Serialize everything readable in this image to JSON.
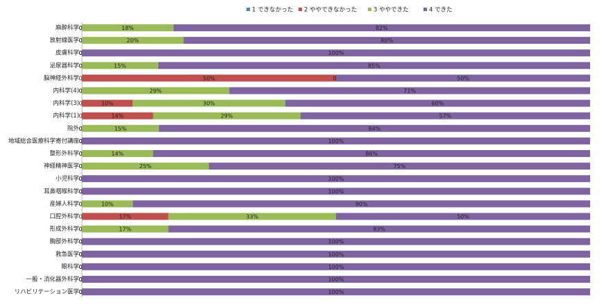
{
  "chart_data": {
    "type": "stacked-bar-100",
    "categories": [
      "麻酔科学",
      "放射線医学",
      "皮膚科学",
      "泌尿器科学",
      "脳神経外科学",
      "内科学(4)",
      "内科学(3)",
      "内科学(1)",
      "院外",
      "地域総合医療科学寄付講座",
      "整形外科学",
      "神経精神医学",
      "小児科学",
      "耳鼻咽喉科学",
      "産婦人科学",
      "口腔外科学",
      "形成外科学",
      "胸部外科学",
      "救急医学",
      "眼科学",
      "一般・消化器外科学",
      "リハビリテーション医学"
    ],
    "series": [
      {
        "name": "1 できなかった",
        "color": "#4f81bd",
        "values": [
          0,
          0,
          0,
          0,
          0,
          0,
          0,
          0,
          0,
          0,
          0,
          0,
          0,
          0,
          0,
          0,
          0,
          0,
          0,
          0,
          0,
          0
        ],
        "value_labels": [
          "0%",
          "0%",
          "0%",
          "0%",
          "0%",
          "0%",
          "0%",
          "0%",
          "0%",
          "0%",
          "0%",
          "0%",
          "0%",
          "0%",
          "0%",
          "0%",
          "0%",
          "0%",
          "0%",
          "0%",
          "0%",
          "0%"
        ]
      },
      {
        "name": "2 ややできなかった",
        "color": "#c0504d",
        "values": [
          0,
          0,
          0,
          0,
          50,
          0,
          10,
          14,
          0,
          0,
          0,
          0,
          0,
          0,
          0,
          17,
          0,
          0,
          0,
          0,
          0,
          0
        ],
        "value_labels": [
          "0%",
          "0%",
          "0%",
          "0%",
          "50%",
          "0%",
          "10%",
          "14%",
          "0%",
          "0%",
          "0%",
          "0%",
          "0%",
          "0%",
          "0%",
          "17%",
          "0%",
          "0%",
          "0%",
          "0%",
          "0%",
          "0%"
        ]
      },
      {
        "name": "3 ややできた",
        "color": "#9bbb59",
        "values": [
          18,
          20,
          0,
          15,
          0,
          29,
          30,
          29,
          15,
          0,
          14,
          25,
          0,
          0,
          10,
          33,
          17,
          0,
          0,
          0,
          0,
          0
        ],
        "value_labels": [
          "18%",
          "20%",
          "0%",
          "15%",
          "0%",
          "29%",
          "30%",
          "29%",
          "15%",
          "0%",
          "14%",
          "25%",
          "0%",
          "0%",
          "10%",
          "33%",
          "17%",
          "0%",
          "0%",
          "0%",
          "0%",
          "0%"
        ]
      },
      {
        "name": "4 できた",
        "color": "#8064a2",
        "values": [
          82,
          80,
          100,
          85,
          50,
          71,
          60,
          57,
          84,
          100,
          86,
          75,
          100,
          100,
          90,
          50,
          83,
          100,
          100,
          100,
          100,
          100
        ],
        "value_labels": [
          "82%",
          "80%",
          "100%",
          "85%",
          "50%",
          "71%",
          "60%",
          "57%",
          "84%",
          "100%",
          "86%",
          "75%",
          "100%",
          "100%",
          "90%",
          "50%",
          "83%",
          "100%",
          "100%",
          "100%",
          "100%",
          "100%"
        ]
      }
    ]
  }
}
